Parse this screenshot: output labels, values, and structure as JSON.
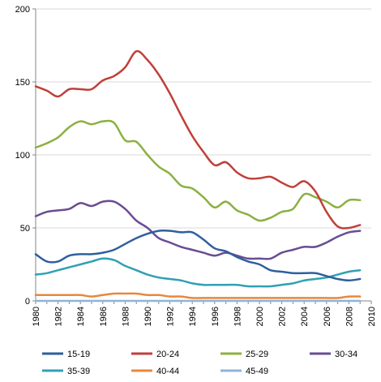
{
  "chart_data": {
    "type": "line",
    "title": "",
    "xlabel": "",
    "ylabel": "",
    "xlim": [
      1980,
      2010
    ],
    "ylim": [
      0,
      200
    ],
    "x_ticks": [
      "1980",
      "1982",
      "1984",
      "1986",
      "1988",
      "1990",
      "1992",
      "1994",
      "1996",
      "1998",
      "2000",
      "2002",
      "2004",
      "2006",
      "2008",
      "2010"
    ],
    "y_ticks": [
      "0",
      "50",
      "100",
      "150",
      "200"
    ],
    "grid": "horizontal",
    "legend_position": "bottom",
    "x": [
      1980,
      1981,
      1982,
      1983,
      1984,
      1985,
      1986,
      1987,
      1988,
      1989,
      1990,
      1991,
      1992,
      1993,
      1994,
      1995,
      1996,
      1997,
      1998,
      1999,
      2000,
      2001,
      2002,
      2003,
      2004,
      2005,
      2006,
      2007,
      2008,
      2009
    ],
    "series": [
      {
        "name": "15-19",
        "color": "#2e5f9e",
        "values": [
          32,
          27,
          27,
          31,
          32,
          32,
          33,
          35,
          39,
          43,
          46,
          48,
          48,
          47,
          47,
          42,
          36,
          34,
          30,
          27,
          25,
          21,
          20,
          19,
          19,
          19,
          17,
          15,
          14,
          15
        ]
      },
      {
        "name": "20-24",
        "color": "#c0403b",
        "values": [
          147,
          144,
          140,
          145,
          145,
          145,
          151,
          154,
          160,
          171,
          165,
          155,
          142,
          127,
          113,
          102,
          93,
          95,
          88,
          84,
          84,
          85,
          81,
          78,
          82,
          75,
          61,
          51,
          50,
          52
        ]
      },
      {
        "name": "25-29",
        "color": "#8db040",
        "values": [
          105,
          108,
          112,
          119,
          123,
          121,
          123,
          122,
          110,
          109,
          100,
          92,
          87,
          79,
          77,
          71,
          64,
          68,
          62,
          59,
          55,
          57,
          61,
          63,
          73,
          71,
          68,
          64,
          69,
          69
        ]
      },
      {
        "name": "30-34",
        "color": "#6a4c93",
        "values": [
          58,
          61,
          62,
          63,
          67,
          65,
          68,
          68,
          63,
          55,
          50,
          43,
          40,
          37,
          35,
          33,
          31,
          33,
          31,
          29,
          29,
          29,
          33,
          35,
          37,
          37,
          40,
          44,
          47,
          48
        ]
      },
      {
        "name": "35-39",
        "color": "#31a0b3",
        "values": [
          18,
          19,
          21,
          23,
          25,
          27,
          29,
          28,
          24,
          21,
          18,
          16,
          15,
          14,
          12,
          11,
          11,
          11,
          11,
          10,
          10,
          10,
          11,
          12,
          14,
          15,
          16,
          18,
          20,
          21
        ]
      },
      {
        "name": "40-44",
        "color": "#e8883a",
        "values": [
          4,
          4,
          4,
          4,
          4,
          3,
          4,
          5,
          5,
          5,
          4,
          4,
          3,
          3,
          2,
          2,
          2,
          2,
          2,
          2,
          2,
          2,
          2,
          2,
          2,
          2,
          2,
          2,
          3,
          3
        ]
      },
      {
        "name": "45-49",
        "color": "#8fb3d9",
        "values": [
          0,
          0,
          0,
          0,
          0,
          0,
          0,
          0,
          0,
          0,
          0,
          0,
          0,
          0,
          0,
          0,
          0,
          0,
          0,
          0,
          0,
          0,
          0,
          0,
          0,
          0,
          0,
          0,
          0,
          0
        ]
      }
    ]
  }
}
